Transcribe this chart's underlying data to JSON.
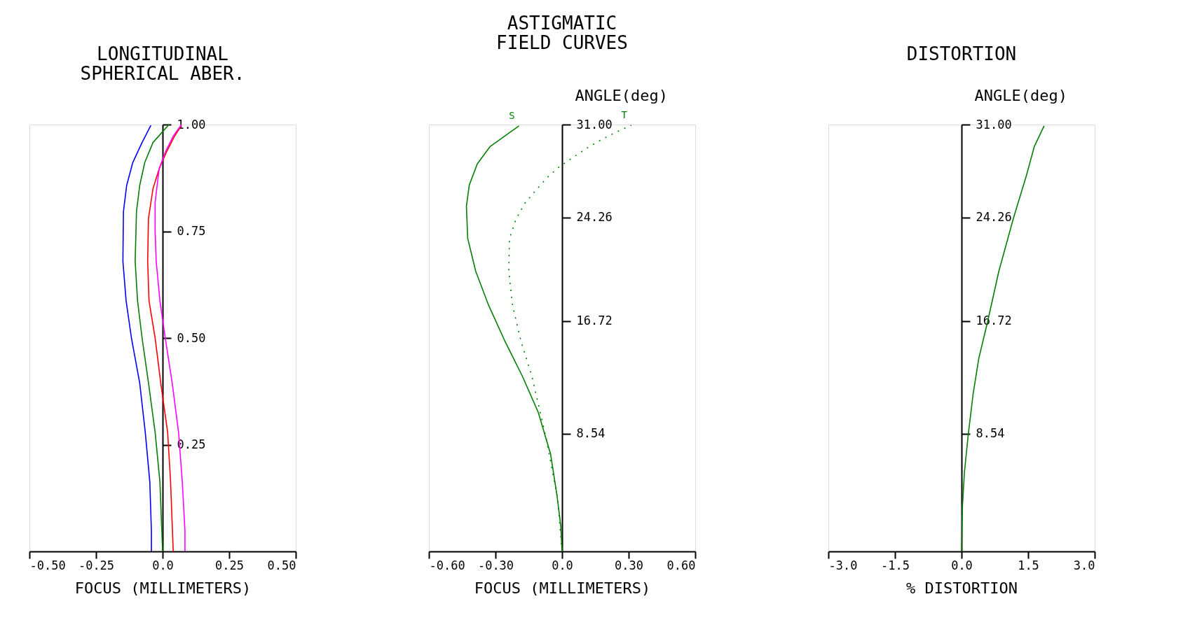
{
  "chart_data": [
    {
      "type": "line",
      "title": "LONGITUDINAL SPHERICAL ABER.",
      "xlabel": "FOCUS (MILLIMETERS)",
      "xlim": [
        -0.5,
        0.5
      ],
      "xticks": [
        {
          "value": -0.5,
          "label": "-0.50"
        },
        {
          "value": -0.25,
          "label": "-0.25"
        },
        {
          "value": 0,
          "label": "0.0"
        },
        0.25,
        {
          "value": 0.5,
          "label": "0.50"
        }
      ],
      "ylim": [
        0,
        1
      ],
      "yticks": [
        0.25,
        {
          "value": 0.5,
          "label": "0.50"
        },
        0.75,
        {
          "value": 1,
          "label": "1.00"
        }
      ],
      "series": [
        {
          "color": "#0000ff",
          "x": [
            -0.042,
            -0.042,
            -0.048,
            -0.065,
            -0.086,
            -0.117,
            -0.137,
            -0.149,
            -0.147,
            -0.135,
            -0.112,
            -0.077,
            -0.044
          ],
          "values": [
            0,
            0.048,
            0.163,
            0.279,
            0.395,
            0.5,
            0.587,
            0.68,
            0.796,
            0.857,
            0.911,
            0.958,
            0.998
          ]
        },
        {
          "color": "#008000",
          "x": [
            0,
            -0.003,
            -0.01,
            -0.028,
            -0.053,
            -0.077,
            -0.094,
            -0.103,
            -0.098,
            -0.086,
            -0.067,
            -0.036,
            0.024
          ],
          "values": [
            0,
            0.048,
            0.163,
            0.279,
            0.395,
            0.5,
            0.587,
            0.68,
            0.796,
            0.857,
            0.911,
            0.958,
            1
          ]
        },
        {
          "color": "#ff0000",
          "x": [
            0.04,
            0.037,
            0.03,
            0.019,
            -0.007,
            -0.028,
            -0.051,
            -0.056,
            -0.053,
            -0.036,
            -0.013,
            0.014,
            0.045,
            0.071
          ],
          "values": [
            0,
            0.048,
            0.163,
            0.279,
            0.395,
            0.5,
            0.587,
            0.68,
            0.78,
            0.85,
            0.896,
            0.935,
            0.973,
            0.998
          ]
        },
        {
          "color": "#ff00ff",
          "x": [
            0.084,
            0.084,
            0.074,
            0.06,
            0.036,
            0.01,
            -0.01,
            -0.024,
            -0.028,
            -0.028,
            -0.013,
            0.01,
            0.04,
            0.071
          ],
          "values": [
            0,
            0.048,
            0.163,
            0.279,
            0.395,
            0.5,
            0.587,
            0.68,
            0.749,
            0.818,
            0.896,
            0.935,
            0.973,
            1
          ]
        }
      ]
    },
    {
      "type": "line",
      "title": "ASTIGMATIC FIELD CURVES",
      "xlabel": "FOCUS (MILLIMETERS)",
      "ylabel": "ANGLE(deg)",
      "xlim": [
        -0.6,
        0.6
      ],
      "xticks": [
        {
          "value": -0.6,
          "label": "-0.60"
        },
        {
          "value": -0.3,
          "label": "-0.30"
        },
        {
          "value": 0,
          "label": "0.0"
        },
        {
          "value": 0.3,
          "label": "0.30"
        },
        {
          "value": 0.6,
          "label": "0.60"
        }
      ],
      "ylim": [
        0,
        31
      ],
      "yticks": [
        8.54,
        16.72,
        24.26,
        {
          "value": 31,
          "label": "31.00"
        }
      ],
      "series": [
        {
          "name": "S",
          "color": "#008000",
          "line_style": "solid",
          "x": [
            0,
            -0.006,
            -0.023,
            -0.052,
            -0.107,
            -0.179,
            -0.259,
            -0.331,
            -0.389,
            -0.425,
            -0.431,
            -0.418,
            -0.382,
            -0.324,
            -0.194
          ],
          "values": [
            0,
            1.89,
            4.09,
            7.09,
            10.09,
            12.73,
            15.32,
            17.88,
            20.34,
            22.72,
            25.06,
            26.61,
            28.14,
            29.41,
            30.9
          ]
        },
        {
          "name": "T",
          "color": "#008000",
          "line_style": "dotted",
          "x": [
            0,
            -0.02,
            -0.071,
            -0.136,
            -0.186,
            -0.223,
            -0.24,
            -0.237,
            -0.208,
            -0.168,
            -0.121,
            -0.067,
            -0.013,
            0.045,
            0.113,
            0.179,
            0.243,
            0.312
          ],
          "values": [
            0,
            3.82,
            8.17,
            12.73,
            15.32,
            17.88,
            20.34,
            22.72,
            24.12,
            25.28,
            26.17,
            27.16,
            27.92,
            28.57,
            29.3,
            29.92,
            30.44,
            30.95
          ]
        }
      ]
    },
    {
      "type": "line",
      "title": "DISTORTION",
      "xlabel": "% DISTORTION",
      "ylabel": "ANGLE(deg)",
      "xlim": [
        -3,
        3
      ],
      "xticks": [
        {
          "value": -3,
          "label": "-3.0"
        },
        {
          "value": -1.5,
          "label": "-1.5"
        },
        {
          "value": 0,
          "label": "0.0"
        },
        1.5,
        {
          "value": 3,
          "label": "3.0"
        }
      ],
      "ylim": [
        0,
        31
      ],
      "yticks": [
        8.54,
        16.72,
        24.26,
        {
          "value": 31,
          "label": "31.00"
        }
      ],
      "series": [
        {
          "color": "#008000",
          "x": [
            0,
            0.02,
            0.065,
            0.15,
            0.26,
            0.39,
            0.59,
            0.84,
            1.17,
            1.46,
            1.64,
            1.86
          ],
          "values": [
            0,
            3.27,
            5.73,
            8.44,
            11.41,
            14.03,
            16.72,
            20.34,
            24.2,
            27.28,
            29.41,
            30.9
          ]
        }
      ]
    }
  ]
}
